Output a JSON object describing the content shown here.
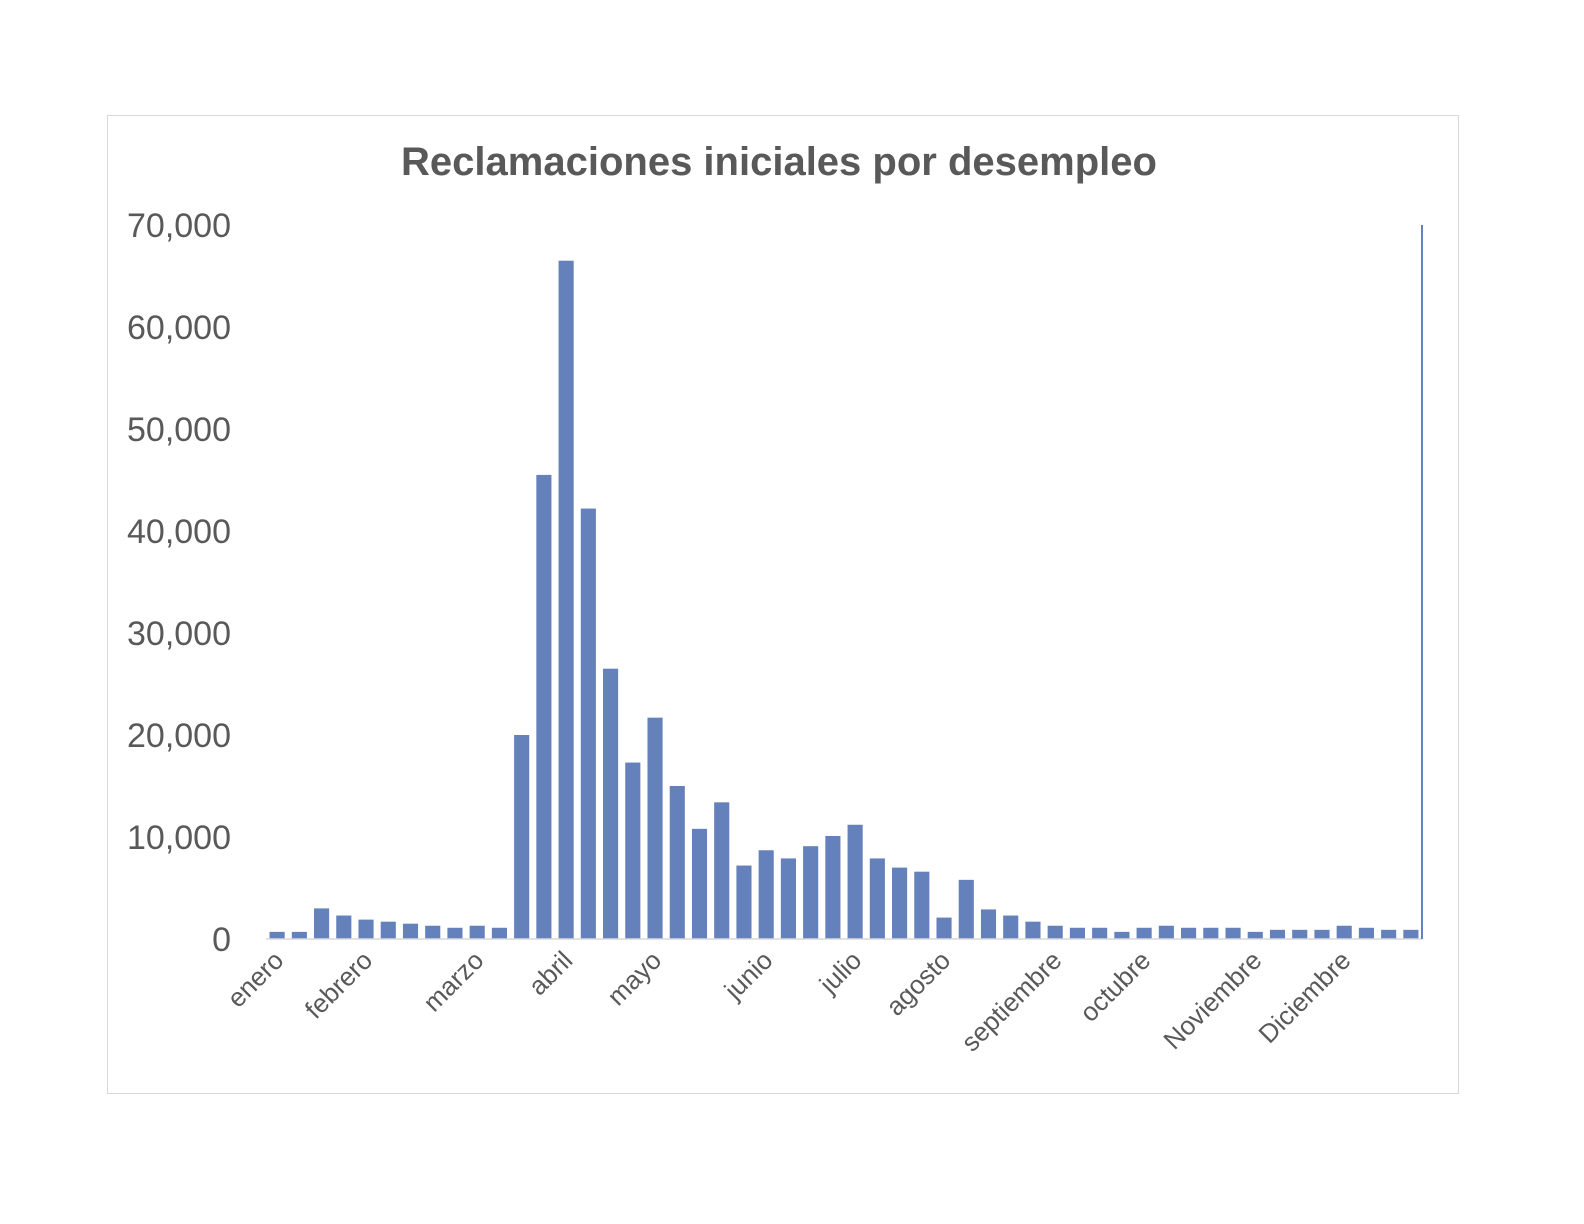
{
  "chart_data": {
    "type": "bar",
    "title": "Reclamaciones iniciales por desempleo",
    "xlabel": "",
    "ylabel": "",
    "ylim": [
      0,
      70000
    ],
    "yticks": [
      "0",
      "10,000",
      "20,000",
      "30,000",
      "40,000",
      "50,000",
      "60,000",
      "70,000"
    ],
    "ytick_values": [
      0,
      10000,
      20000,
      30000,
      40000,
      50000,
      60000,
      70000
    ],
    "month_labels": [
      {
        "label": "enero",
        "index": 0
      },
      {
        "label": "febrero",
        "index": 4
      },
      {
        "label": "marzo",
        "index": 9
      },
      {
        "label": "abril",
        "index": 13
      },
      {
        "label": "mayo",
        "index": 17
      },
      {
        "label": "junio",
        "index": 22
      },
      {
        "label": "julio",
        "index": 26
      },
      {
        "label": "agosto",
        "index": 30
      },
      {
        "label": "septiembre",
        "index": 35
      },
      {
        "label": "octubre",
        "index": 39
      },
      {
        "label": "Noviembre",
        "index": 44
      },
      {
        "label": "Diciembre",
        "index": 48
      }
    ],
    "values": [
      700,
      700,
      3000,
      2300,
      1900,
      1700,
      1500,
      1300,
      1100,
      1300,
      1100,
      20000,
      45500,
      66500,
      42200,
      26500,
      17300,
      21700,
      15000,
      10800,
      13400,
      7200,
      8700,
      7900,
      9100,
      10100,
      11200,
      7900,
      7000,
      6600,
      2100,
      5800,
      2900,
      2300,
      1700,
      1300,
      1100,
      1100,
      700,
      1100,
      1300,
      1100,
      1100,
      1100,
      700,
      900,
      900,
      900,
      1300,
      1100,
      900,
      900
    ],
    "bar_color": "#6581bb",
    "grid": false,
    "legend": "none",
    "right_axis_line": true
  }
}
